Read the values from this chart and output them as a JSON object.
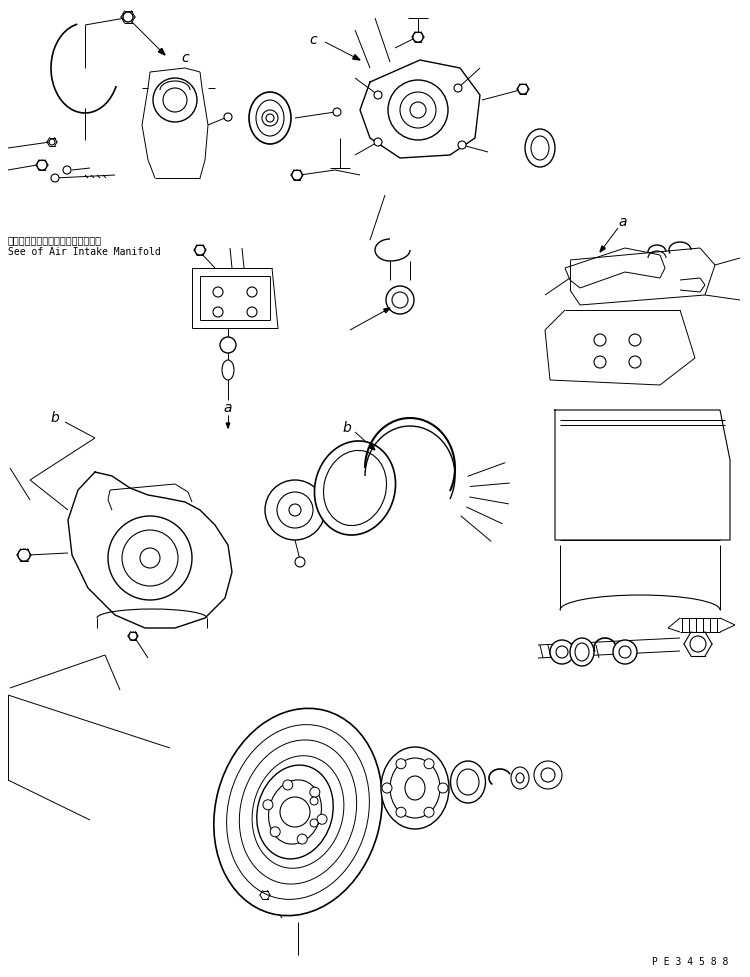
{
  "bg_color": "#ffffff",
  "line_color": "#000000",
  "lw": 0.7,
  "fig_width": 7.5,
  "fig_height": 9.77,
  "dpi": 100,
  "label_c1": "c",
  "label_c2": "c",
  "label_b1": "b",
  "label_b2": "b",
  "label_a1": "a",
  "label_a2": "a",
  "text_japanese": "エアーインテークマニホールド参照",
  "text_english": "See of Air Intake Manifold",
  "code": "P E 3 4 5 8 8",
  "font_size_label": 10,
  "font_size_text_jp": 7,
  "font_size_text_en": 7,
  "font_size_code": 7
}
